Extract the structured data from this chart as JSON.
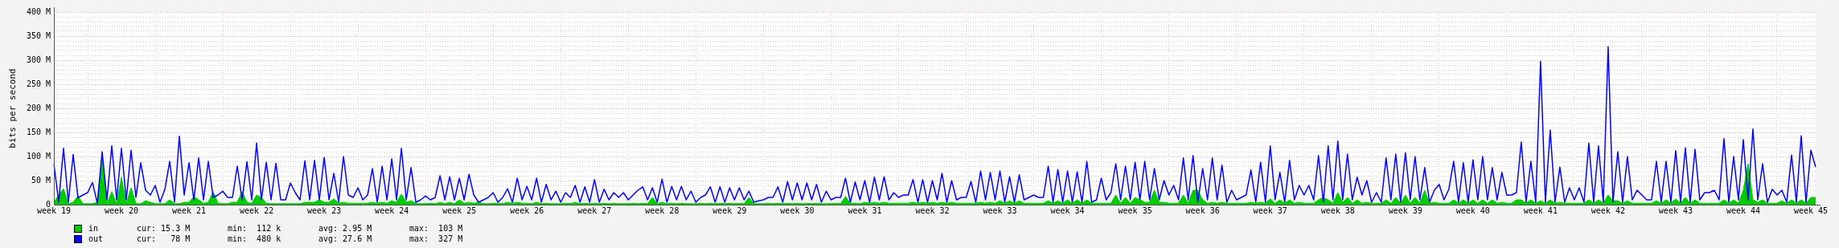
{
  "chart_data": {
    "type": "line",
    "ylabel": "bits per second",
    "categories": [
      "week 19",
      null,
      null,
      null,
      null,
      null,
      null,
      null,
      null,
      null,
      null,
      null,
      null,
      null,
      "week 20",
      null,
      null,
      null,
      null,
      null,
      null,
      null,
      null,
      null,
      null,
      null,
      null,
      null,
      "week 21",
      null,
      null,
      null,
      null,
      null,
      null,
      null,
      null,
      null,
      null,
      null,
      null,
      null,
      "week 22",
      null,
      null,
      null,
      null,
      null,
      null,
      null,
      null,
      null,
      null,
      null,
      null,
      null,
      "week 23",
      null,
      null,
      null,
      null,
      null,
      null,
      null,
      null,
      null,
      null,
      null,
      null,
      null,
      "week 24",
      null,
      null,
      null,
      null,
      null,
      null,
      null,
      null,
      null,
      null,
      null,
      null,
      null,
      "week 25",
      null,
      null,
      null,
      null,
      null,
      null,
      null,
      null,
      null,
      null,
      null,
      null,
      null,
      "week 26",
      null,
      null,
      null,
      null,
      null,
      null,
      null,
      null,
      null,
      null,
      null,
      null,
      null,
      "week 27",
      null,
      null,
      null,
      null,
      null,
      null,
      null,
      null,
      null,
      null,
      null,
      null,
      null,
      "week 28",
      null,
      null,
      null,
      null,
      null,
      null,
      null,
      null,
      null,
      null,
      null,
      null,
      null,
      "week 29",
      null,
      null,
      null,
      null,
      null,
      null,
      null,
      null,
      null,
      null,
      null,
      null,
      null,
      "week 30",
      null,
      null,
      null,
      null,
      null,
      null,
      null,
      null,
      null,
      null,
      null,
      null,
      null,
      "week 31",
      null,
      null,
      null,
      null,
      null,
      null,
      null,
      null,
      null,
      null,
      null,
      null,
      null,
      "week 32",
      null,
      null,
      null,
      null,
      null,
      null,
      null,
      null,
      null,
      null,
      null,
      null,
      null,
      "week 33",
      null,
      null,
      null,
      null,
      null,
      null,
      null,
      null,
      null,
      null,
      null,
      null,
      null,
      "week 34",
      null,
      null,
      null,
      null,
      null,
      null,
      null,
      null,
      null,
      null,
      null,
      null,
      null,
      "week 35",
      null,
      null,
      null,
      null,
      null,
      null,
      null,
      null,
      null,
      null,
      null,
      null,
      null,
      "week 36",
      null,
      null,
      null,
      null,
      null,
      null,
      null,
      null,
      null,
      null,
      null,
      null,
      null,
      "week 37",
      null,
      null,
      null,
      null,
      null,
      null,
      null,
      null,
      null,
      null,
      null,
      null,
      null,
      "week 38",
      null,
      null,
      null,
      null,
      null,
      null,
      null,
      null,
      null,
      null,
      null,
      null,
      null,
      "week 39",
      null,
      null,
      null,
      null,
      null,
      null,
      null,
      null,
      null,
      null,
      null,
      null,
      null,
      "week 40",
      null,
      null,
      null,
      null,
      null,
      null,
      null,
      null,
      null,
      null,
      null,
      null,
      null,
      "week 41",
      null,
      null,
      null,
      null,
      null,
      null,
      null,
      null,
      null,
      null,
      null,
      null,
      null,
      "week 42",
      null,
      null,
      null,
      null,
      null,
      null,
      null,
      null,
      null,
      null,
      null,
      null,
      null,
      "week 43",
      null,
      null,
      null,
      null,
      null,
      null,
      null,
      null,
      null,
      null,
      null,
      null,
      null,
      "week 44",
      null,
      null,
      null,
      null,
      null,
      null,
      null,
      null,
      null,
      null,
      null,
      null,
      null,
      "week 45",
      null
    ],
    "ylim": [
      0,
      400
    ],
    "yticks": [
      0,
      {
        "value": 10,
        "label": null
      },
      {
        "value": 20,
        "label": null
      },
      {
        "value": 30,
        "label": null
      },
      {
        "value": 40,
        "label": null
      },
      {
        "value": 50,
        "label": "50 M"
      },
      {
        "value": 60,
        "label": null
      },
      {
        "value": 70,
        "label": null
      },
      {
        "value": 80,
        "label": null
      },
      {
        "value": 90,
        "label": null
      },
      {
        "value": 100,
        "label": "100 M"
      },
      {
        "value": 110,
        "label": null
      },
      {
        "value": 120,
        "label": null
      },
      {
        "value": 130,
        "label": null
      },
      {
        "value": 140,
        "label": null
      },
      {
        "value": 150,
        "label": "150 M"
      },
      {
        "value": 160,
        "label": null
      },
      {
        "value": 170,
        "label": null
      },
      {
        "value": 180,
        "label": null
      },
      {
        "value": 190,
        "label": null
      },
      {
        "value": 200,
        "label": "200 M"
      },
      {
        "value": 210,
        "label": null
      },
      {
        "value": 220,
        "label": null
      },
      {
        "value": 230,
        "label": null
      },
      {
        "value": 240,
        "label": null
      },
      {
        "value": 250,
        "label": "250 M"
      },
      {
        "value": 260,
        "label": null
      },
      {
        "value": 270,
        "label": null
      },
      {
        "value": 280,
        "label": null
      },
      {
        "value": 290,
        "label": null
      },
      {
        "value": 300,
        "label": "300 M"
      },
      {
        "value": 310,
        "label": null
      },
      {
        "value": 320,
        "label": null
      },
      {
        "value": 330,
        "label": null
      },
      {
        "value": 340,
        "label": null
      },
      {
        "value": 350,
        "label": "350 M"
      },
      {
        "value": 360,
        "label": null
      },
      {
        "value": 370,
        "label": null
      },
      {
        "value": 380,
        "label": null
      },
      {
        "value": 390,
        "label": null
      },
      {
        "value": 400,
        "label": "400 M"
      }
    ],
    "grid": true,
    "legend": "bottom",
    "marker": "none",
    "line_style": "solid",
    "annotations": [
      "cur: 15.3 M",
      "min:  112 k",
      "avg: 2.95 M",
      "max:  103 M",
      "cur:   78 M",
      "min:  480 k",
      "avg: 27.6 M",
      "max:  327 M"
    ],
    "series": [
      {
        "name": "in",
        "type": "area",
        "color": "#00cc00",
        "values": [
          5,
          20,
          33,
          2,
          5,
          18,
          2,
          2,
          2,
          5,
          103,
          2,
          27,
          2,
          57,
          2,
          35,
          2,
          2,
          8,
          5,
          2,
          2,
          2,
          10,
          2,
          2,
          5,
          5,
          17,
          10,
          3,
          5,
          27,
          3,
          2,
          2,
          5,
          5,
          27,
          5,
          3,
          20,
          15,
          3,
          2,
          2,
          2,
          2,
          2,
          2,
          2,
          5,
          5,
          5,
          10,
          5,
          5,
          12,
          3,
          5,
          3,
          3,
          3,
          3,
          3,
          5,
          3,
          5,
          3,
          8,
          5,
          22,
          5,
          8,
          3,
          2,
          2,
          3,
          2,
          5,
          2,
          5,
          2,
          10,
          3,
          5,
          3,
          5,
          2,
          2,
          3,
          3,
          2,
          5,
          3,
          5,
          3,
          3,
          2,
          5,
          2,
          3,
          2,
          2,
          2,
          3,
          2,
          5,
          2,
          3,
          2,
          3,
          2,
          3,
          2,
          3,
          2,
          2,
          2,
          3,
          2,
          3,
          2,
          15,
          2,
          5,
          2,
          3,
          2,
          3,
          2,
          2,
          2,
          3,
          2,
          3,
          2,
          3,
          2,
          3,
          2,
          3,
          2,
          15,
          2,
          2,
          2,
          3,
          2,
          3,
          2,
          3,
          2,
          3,
          2,
          3,
          2,
          3,
          2,
          2,
          2,
          3,
          2,
          17,
          3,
          3,
          2,
          5,
          3,
          5,
          3,
          5,
          3,
          3,
          3,
          3,
          3,
          5,
          3,
          5,
          3,
          5,
          3,
          5,
          3,
          5,
          3,
          3,
          3,
          3,
          3,
          5,
          3,
          5,
          3,
          8,
          3,
          8,
          3,
          8,
          3,
          3,
          3,
          3,
          3,
          8,
          3,
          8,
          3,
          10,
          3,
          10,
          3,
          10,
          3,
          3,
          3,
          3,
          3,
          20,
          3,
          15,
          3,
          15,
          10,
          5,
          5,
          30,
          5,
          5,
          3,
          3,
          3,
          20,
          3,
          30,
          30,
          10,
          3,
          5,
          3,
          5,
          3,
          3,
          3,
          3,
          3,
          5,
          3,
          5,
          3,
          12,
          3,
          10,
          3,
          10,
          3,
          5,
          3,
          3,
          3,
          10,
          15,
          10,
          3,
          25,
          5,
          15,
          3,
          10,
          3,
          5,
          3,
          3,
          3,
          10,
          3,
          15,
          3,
          20,
          3,
          15,
          3,
          30,
          3,
          5,
          3,
          3,
          3,
          10,
          3,
          10,
          3,
          10,
          3,
          10,
          3,
          10,
          3,
          5,
          3,
          3,
          10,
          10,
          3,
          10,
          3,
          8,
          3,
          10,
          3,
          5,
          3,
          3,
          3,
          3,
          3,
          10,
          3,
          10,
          3,
          20,
          8,
          8,
          3,
          8,
          3,
          3,
          3,
          3,
          3,
          8,
          3,
          10,
          3,
          12,
          3,
          15,
          3,
          10,
          3,
          3,
          3,
          3,
          3,
          10,
          3,
          10,
          3,
          30,
          85,
          10,
          5,
          10,
          3,
          3,
          3,
          8,
          3,
          10,
          3,
          10,
          3,
          15,
          15
        ]
      },
      {
        "name": "out",
        "type": "line",
        "color": "#0000ff",
        "values": [
          85,
          5,
          117,
          5,
          104,
          14,
          20,
          25,
          46,
          3,
          110,
          10,
          122,
          10,
          117,
          10,
          113,
          15,
          87,
          30,
          20,
          40,
          5,
          32,
          90,
          5,
          142,
          20,
          87,
          10,
          97,
          10,
          90,
          15,
          20,
          28,
          15,
          15,
          80,
          10,
          89,
          10,
          128,
          10,
          88,
          10,
          86,
          10,
          10,
          45,
          25,
          10,
          91,
          10,
          92,
          10,
          98,
          10,
          65,
          5,
          100,
          20,
          15,
          35,
          10,
          20,
          75,
          5,
          80,
          10,
          95,
          10,
          117,
          10,
          77,
          5,
          10,
          18,
          10,
          15,
          60,
          10,
          58,
          10,
          55,
          10,
          63,
          20,
          5,
          10,
          15,
          25,
          5,
          15,
          33,
          5,
          55,
          10,
          38,
          10,
          55,
          5,
          42,
          10,
          28,
          5,
          25,
          15,
          40,
          5,
          37,
          5,
          52,
          5,
          32,
          10,
          25,
          15,
          25,
          10,
          20,
          30,
          37,
          10,
          35,
          5,
          53,
          5,
          38,
          10,
          38,
          10,
          28,
          5,
          15,
          20,
          37,
          5,
          37,
          5,
          35,
          10,
          35,
          10,
          28,
          5,
          8,
          10,
          15,
          15,
          37,
          5,
          48,
          10,
          45,
          10,
          45,
          10,
          42,
          5,
          28,
          10,
          15,
          15,
          55,
          5,
          47,
          10,
          50,
          5,
          57,
          10,
          58,
          10,
          25,
          15,
          20,
          20,
          52,
          5,
          52,
          5,
          50,
          10,
          65,
          5,
          50,
          10,
          15,
          15,
          48,
          5,
          70,
          10,
          67,
          10,
          70,
          5,
          58,
          5,
          62,
          10,
          15,
          20,
          15,
          15,
          80,
          5,
          73,
          5,
          70,
          5,
          68,
          5,
          90,
          5,
          10,
          55,
          10,
          25,
          85,
          10,
          80,
          10,
          88,
          10,
          90,
          10,
          75,
          10,
          50,
          20,
          40,
          10,
          97,
          10,
          102,
          5,
          75,
          10,
          97,
          10,
          82,
          5,
          30,
          10,
          15,
          20,
          72,
          5,
          88,
          5,
          122,
          10,
          67,
          5,
          92,
          10,
          40,
          20,
          40,
          10,
          102,
          5,
          122,
          10,
          132,
          10,
          105,
          10,
          57,
          20,
          50,
          5,
          25,
          5,
          97,
          10,
          105,
          5,
          108,
          10,
          100,
          10,
          77,
          5,
          30,
          42,
          10,
          32,
          90,
          5,
          87,
          5,
          93,
          10,
          100,
          10,
          77,
          10,
          67,
          20,
          20,
          25,
          130,
          5,
          90,
          5,
          298,
          5,
          155,
          5,
          78,
          5,
          35,
          10,
          35,
          5,
          128,
          5,
          122,
          5,
          328,
          5,
          110,
          5,
          100,
          10,
          30,
          20,
          10,
          10,
          90,
          5,
          90,
          5,
          112,
          5,
          118,
          5,
          115,
          10,
          25,
          25,
          30,
          10,
          137,
          5,
          100,
          10,
          135,
          10,
          157,
          10,
          85,
          5,
          32,
          20,
          30,
          5,
          103,
          5,
          143,
          5,
          113,
          78
        ]
      }
    ]
  }
}
